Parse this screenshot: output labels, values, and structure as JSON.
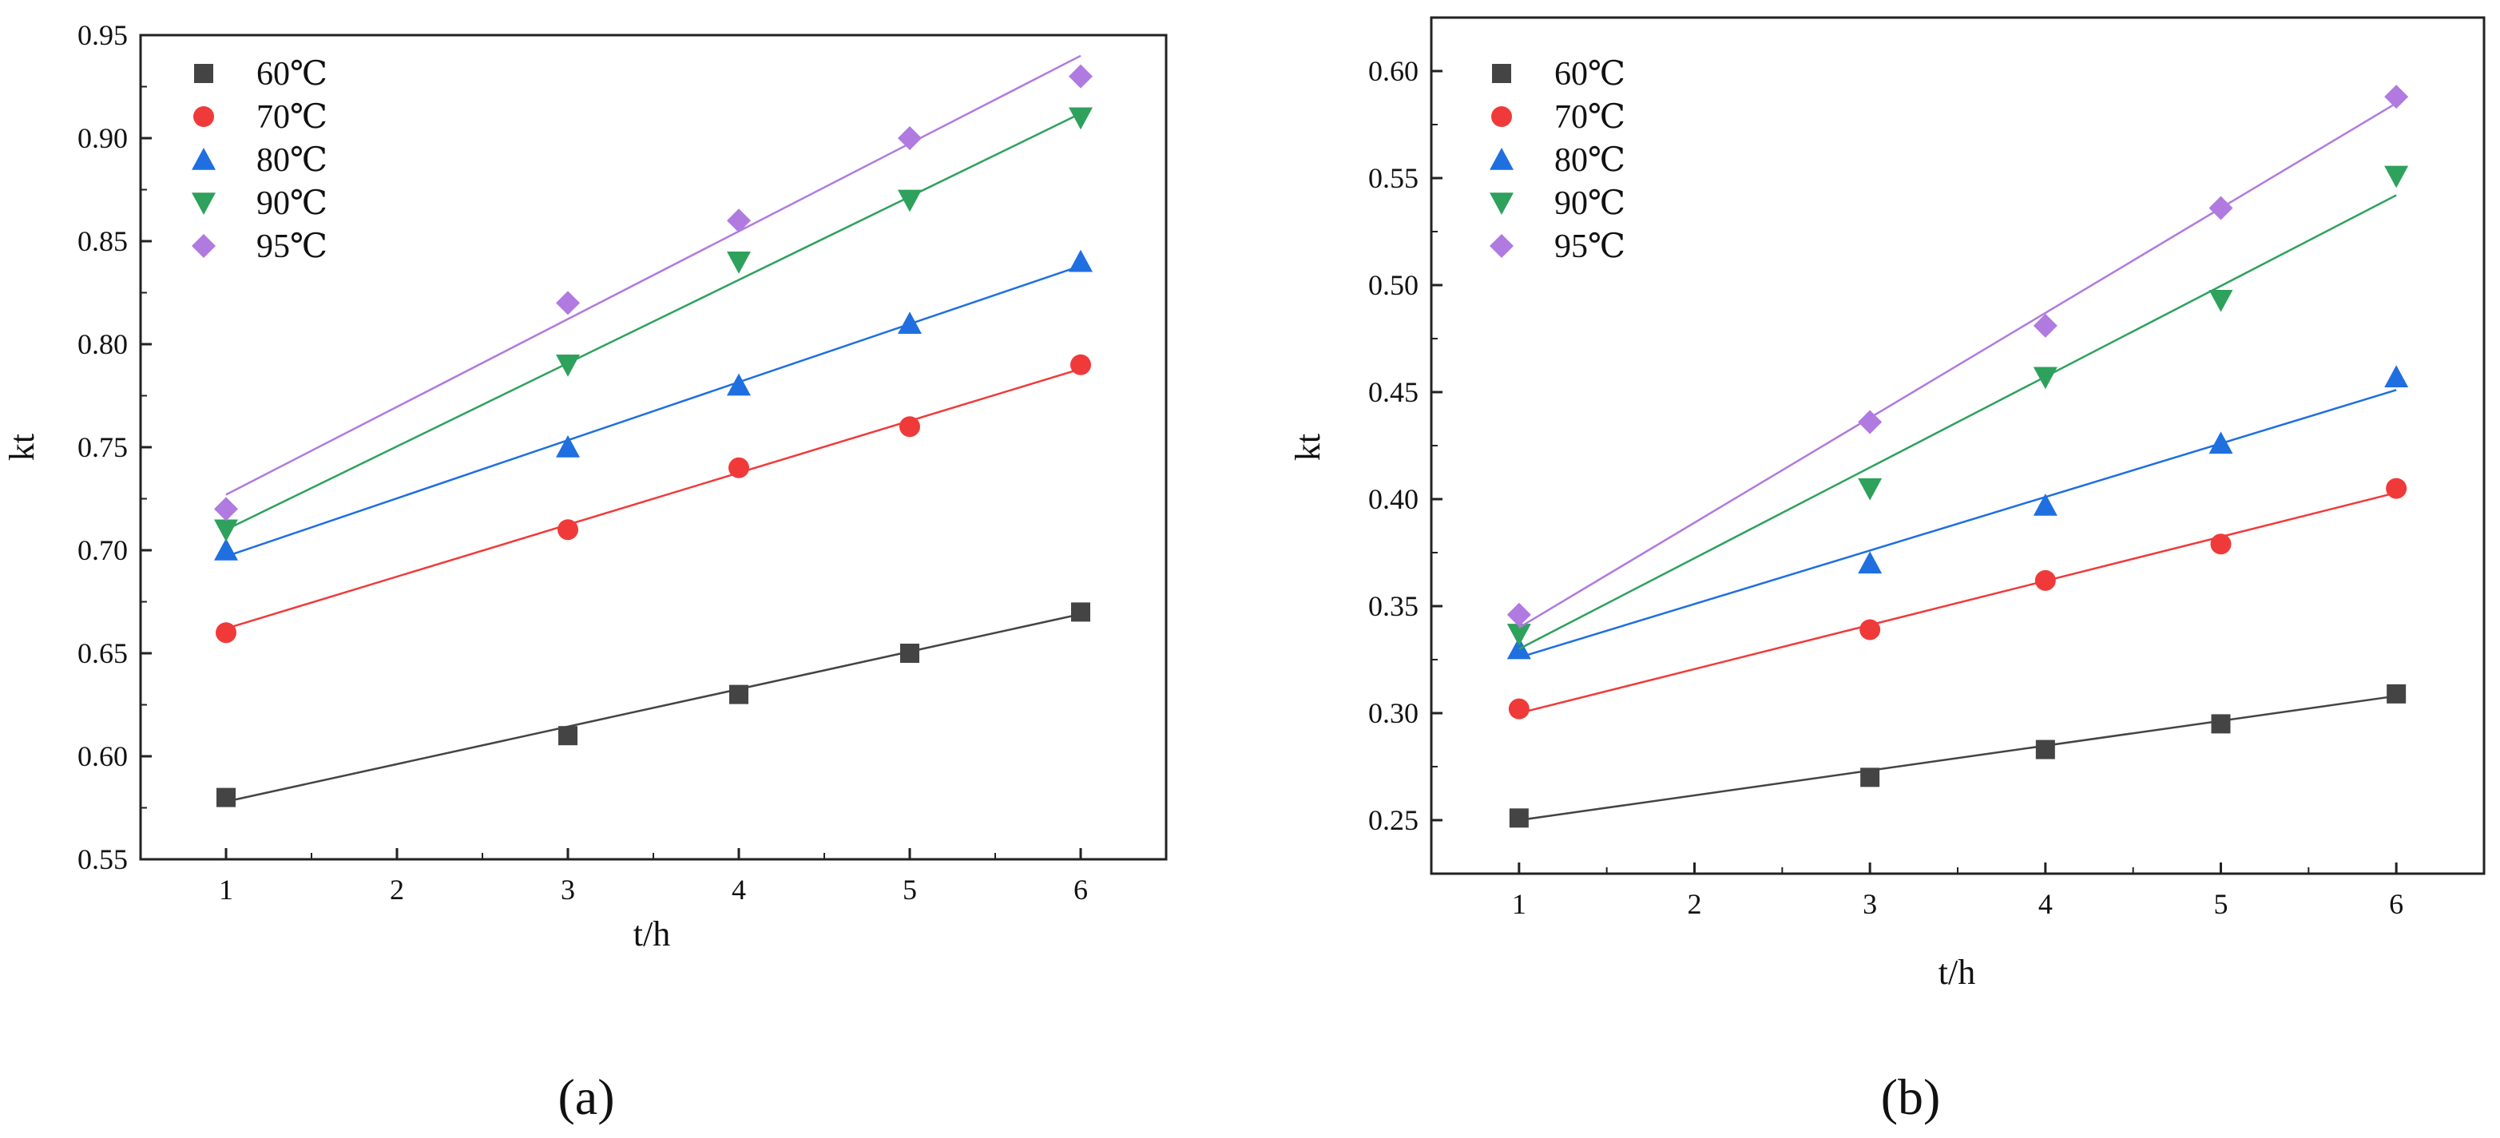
{
  "chart_data": [
    {
      "panel": "a",
      "type": "scatter",
      "xlabel": "t/h",
      "ylabel": "kt",
      "xlim": [
        0.5,
        6.5
      ],
      "ylim": [
        0.55,
        0.95
      ],
      "xticks": [
        1,
        2,
        3,
        4,
        5,
        6
      ],
      "yticks": [
        0.55,
        0.6,
        0.65,
        0.7,
        0.75,
        0.8,
        0.85,
        0.9,
        0.95
      ],
      "ytick_labels": [
        "0.55",
        "0.60",
        "0.65",
        "0.70",
        "0.75",
        "0.80",
        "0.85",
        "0.90",
        "0.95"
      ],
      "legend_position": "top-left",
      "series": [
        {
          "name": "60℃",
          "marker": "square",
          "color": "#444444",
          "x": [
            1,
            3,
            4,
            5,
            6
          ],
          "y": [
            0.58,
            0.61,
            0.63,
            0.65,
            0.67
          ],
          "fit": [
            0.578,
            0.669
          ]
        },
        {
          "name": "70℃",
          "marker": "circle",
          "color": "#f03a3a",
          "x": [
            1,
            3,
            4,
            5,
            6
          ],
          "y": [
            0.66,
            0.71,
            0.74,
            0.76,
            0.79
          ],
          "fit": [
            0.662,
            0.788
          ]
        },
        {
          "name": "80℃",
          "marker": "triangle-up",
          "color": "#1f6fe0",
          "x": [
            1,
            3,
            4,
            5,
            6
          ],
          "y": [
            0.7,
            0.75,
            0.78,
            0.81,
            0.84
          ],
          "fit": [
            0.697,
            0.838
          ]
        },
        {
          "name": "90℃",
          "marker": "triangle-down",
          "color": "#2ea15c",
          "x": [
            1,
            3,
            4,
            5,
            6
          ],
          "y": [
            0.71,
            0.79,
            0.84,
            0.87,
            0.91
          ],
          "fit": [
            0.71,
            0.912
          ]
        },
        {
          "name": "95℃",
          "marker": "diamond",
          "color": "#b07ae0",
          "x": [
            1,
            3,
            4,
            5,
            6
          ],
          "y": [
            0.72,
            0.82,
            0.86,
            0.9,
            0.93
          ],
          "fit": [
            0.727,
            0.94
          ]
        }
      ]
    },
    {
      "panel": "b",
      "type": "scatter",
      "xlabel": "t/h",
      "ylabel": "kt",
      "xlim": [
        0.5,
        6.5
      ],
      "ylim": [
        0.225,
        0.625
      ],
      "xticks": [
        1,
        2,
        3,
        4,
        5,
        6
      ],
      "yticks": [
        0.25,
        0.3,
        0.35,
        0.4,
        0.45,
        0.5,
        0.55,
        0.6
      ],
      "ytick_labels": [
        "0.25",
        "0.30",
        "0.35",
        "0.40",
        "0.45",
        "0.50",
        "0.55",
        "0.60"
      ],
      "legend_position": "top-left",
      "series": [
        {
          "name": "60℃",
          "marker": "square",
          "color": "#444444",
          "x": [
            1,
            3,
            4,
            5,
            6
          ],
          "y": [
            0.251,
            0.27,
            0.283,
            0.295,
            0.309
          ],
          "fit": [
            0.25,
            0.308
          ]
        },
        {
          "name": "70℃",
          "marker": "circle",
          "color": "#f03a3a",
          "x": [
            1,
            3,
            4,
            5,
            6
          ],
          "y": [
            0.302,
            0.339,
            0.362,
            0.379,
            0.405
          ],
          "fit": [
            0.3,
            0.403
          ]
        },
        {
          "name": "80℃",
          "marker": "triangle-up",
          "color": "#1f6fe0",
          "x": [
            1,
            3,
            4,
            5,
            6
          ],
          "y": [
            0.33,
            0.37,
            0.397,
            0.426,
            0.457
          ],
          "fit": [
            0.326,
            0.451
          ]
        },
        {
          "name": "90℃",
          "marker": "triangle-down",
          "color": "#2ea15c",
          "x": [
            1,
            3,
            4,
            5,
            6
          ],
          "y": [
            0.337,
            0.405,
            0.457,
            0.493,
            0.551
          ],
          "fit": [
            0.33,
            0.542
          ]
        },
        {
          "name": "95℃",
          "marker": "diamond",
          "color": "#b07ae0",
          "x": [
            1,
            3,
            4,
            5,
            6
          ],
          "y": [
            0.346,
            0.436,
            0.481,
            0.536,
            0.588
          ],
          "fit": [
            0.34,
            0.585
          ]
        }
      ]
    }
  ],
  "panel_labels": [
    "(a)",
    "(b)"
  ]
}
